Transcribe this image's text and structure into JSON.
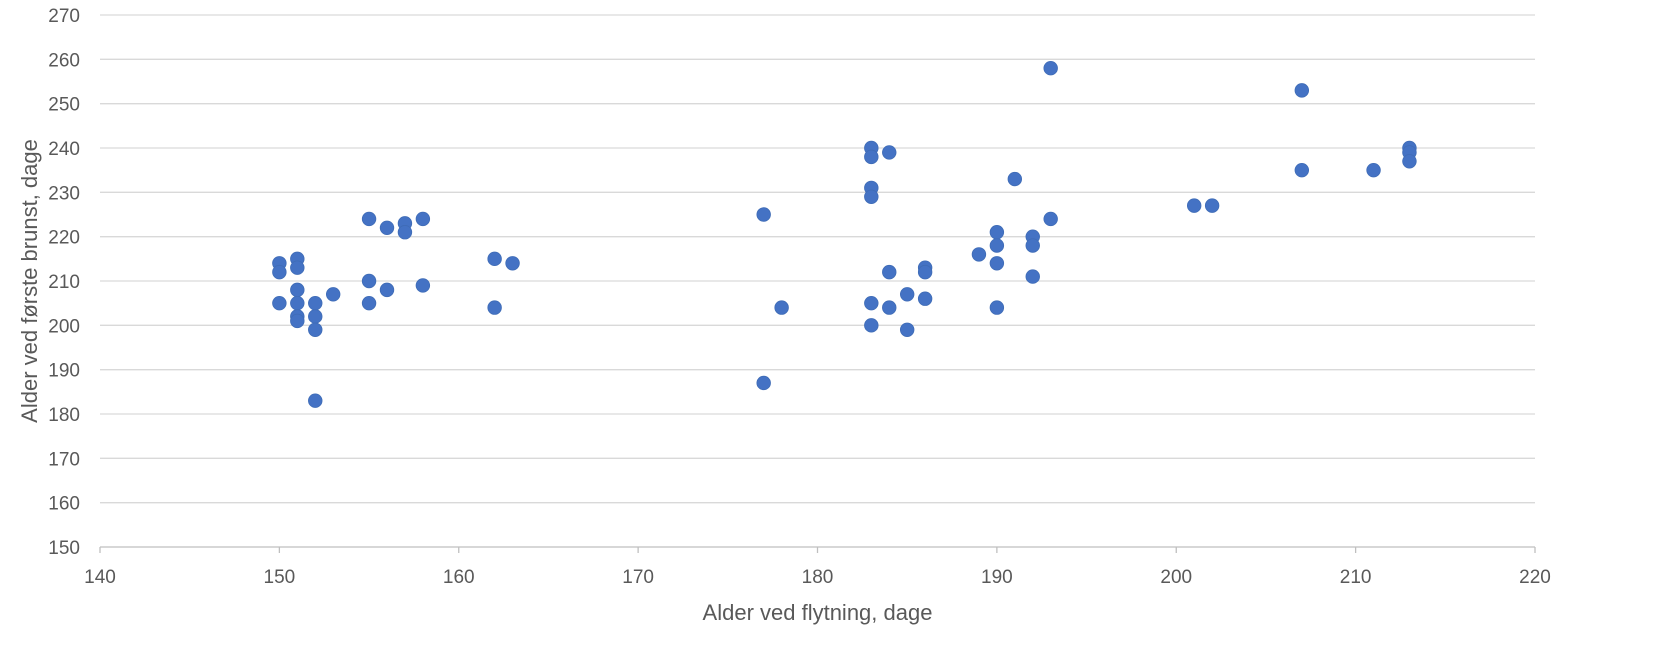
{
  "chart_data": {
    "type": "scatter",
    "xlabel": "Alder ved flytning, dage",
    "ylabel": "Alder ved første brunst, dage",
    "xlim": [
      140,
      220
    ],
    "ylim": [
      150,
      270
    ],
    "xticks": [
      140,
      150,
      160,
      170,
      180,
      190,
      200,
      210,
      220
    ],
    "yticks": [
      150,
      160,
      170,
      180,
      190,
      200,
      210,
      220,
      230,
      240,
      250,
      260,
      270
    ],
    "grid": "horizontal",
    "legend": "none",
    "marker_color": "#4472c4",
    "points": [
      [
        150,
        214
      ],
      [
        150,
        212
      ],
      [
        150,
        205
      ],
      [
        151,
        215
      ],
      [
        151,
        213
      ],
      [
        151,
        208
      ],
      [
        151,
        205
      ],
      [
        151,
        202
      ],
      [
        151,
        201
      ],
      [
        152,
        205
      ],
      [
        152,
        202
      ],
      [
        152,
        199
      ],
      [
        152,
        183
      ],
      [
        153,
        207
      ],
      [
        155,
        224
      ],
      [
        155,
        210
      ],
      [
        155,
        205
      ],
      [
        156,
        222
      ],
      [
        156,
        208
      ],
      [
        157,
        223
      ],
      [
        157,
        221
      ],
      [
        158,
        224
      ],
      [
        158,
        209
      ],
      [
        162,
        215
      ],
      [
        162,
        204
      ],
      [
        163,
        214
      ],
      [
        177,
        225
      ],
      [
        177,
        187
      ],
      [
        178,
        204
      ],
      [
        183,
        240
      ],
      [
        183,
        238
      ],
      [
        183,
        231
      ],
      [
        183,
        229
      ],
      [
        183,
        205
      ],
      [
        183,
        200
      ],
      [
        184,
        239
      ],
      [
        184,
        212
      ],
      [
        184,
        204
      ],
      [
        185,
        207
      ],
      [
        185,
        199
      ],
      [
        186,
        213
      ],
      [
        186,
        212
      ],
      [
        186,
        206
      ],
      [
        189,
        216
      ],
      [
        190,
        221
      ],
      [
        190,
        218
      ],
      [
        190,
        214
      ],
      [
        190,
        204
      ],
      [
        191,
        233
      ],
      [
        192,
        220
      ],
      [
        192,
        218
      ],
      [
        192,
        211
      ],
      [
        193,
        258
      ],
      [
        193,
        224
      ],
      [
        201,
        227
      ],
      [
        202,
        227
      ],
      [
        207,
        253
      ],
      [
        207,
        235
      ],
      [
        211,
        235
      ],
      [
        213,
        240
      ],
      [
        213,
        239
      ],
      [
        213,
        237
      ]
    ]
  }
}
